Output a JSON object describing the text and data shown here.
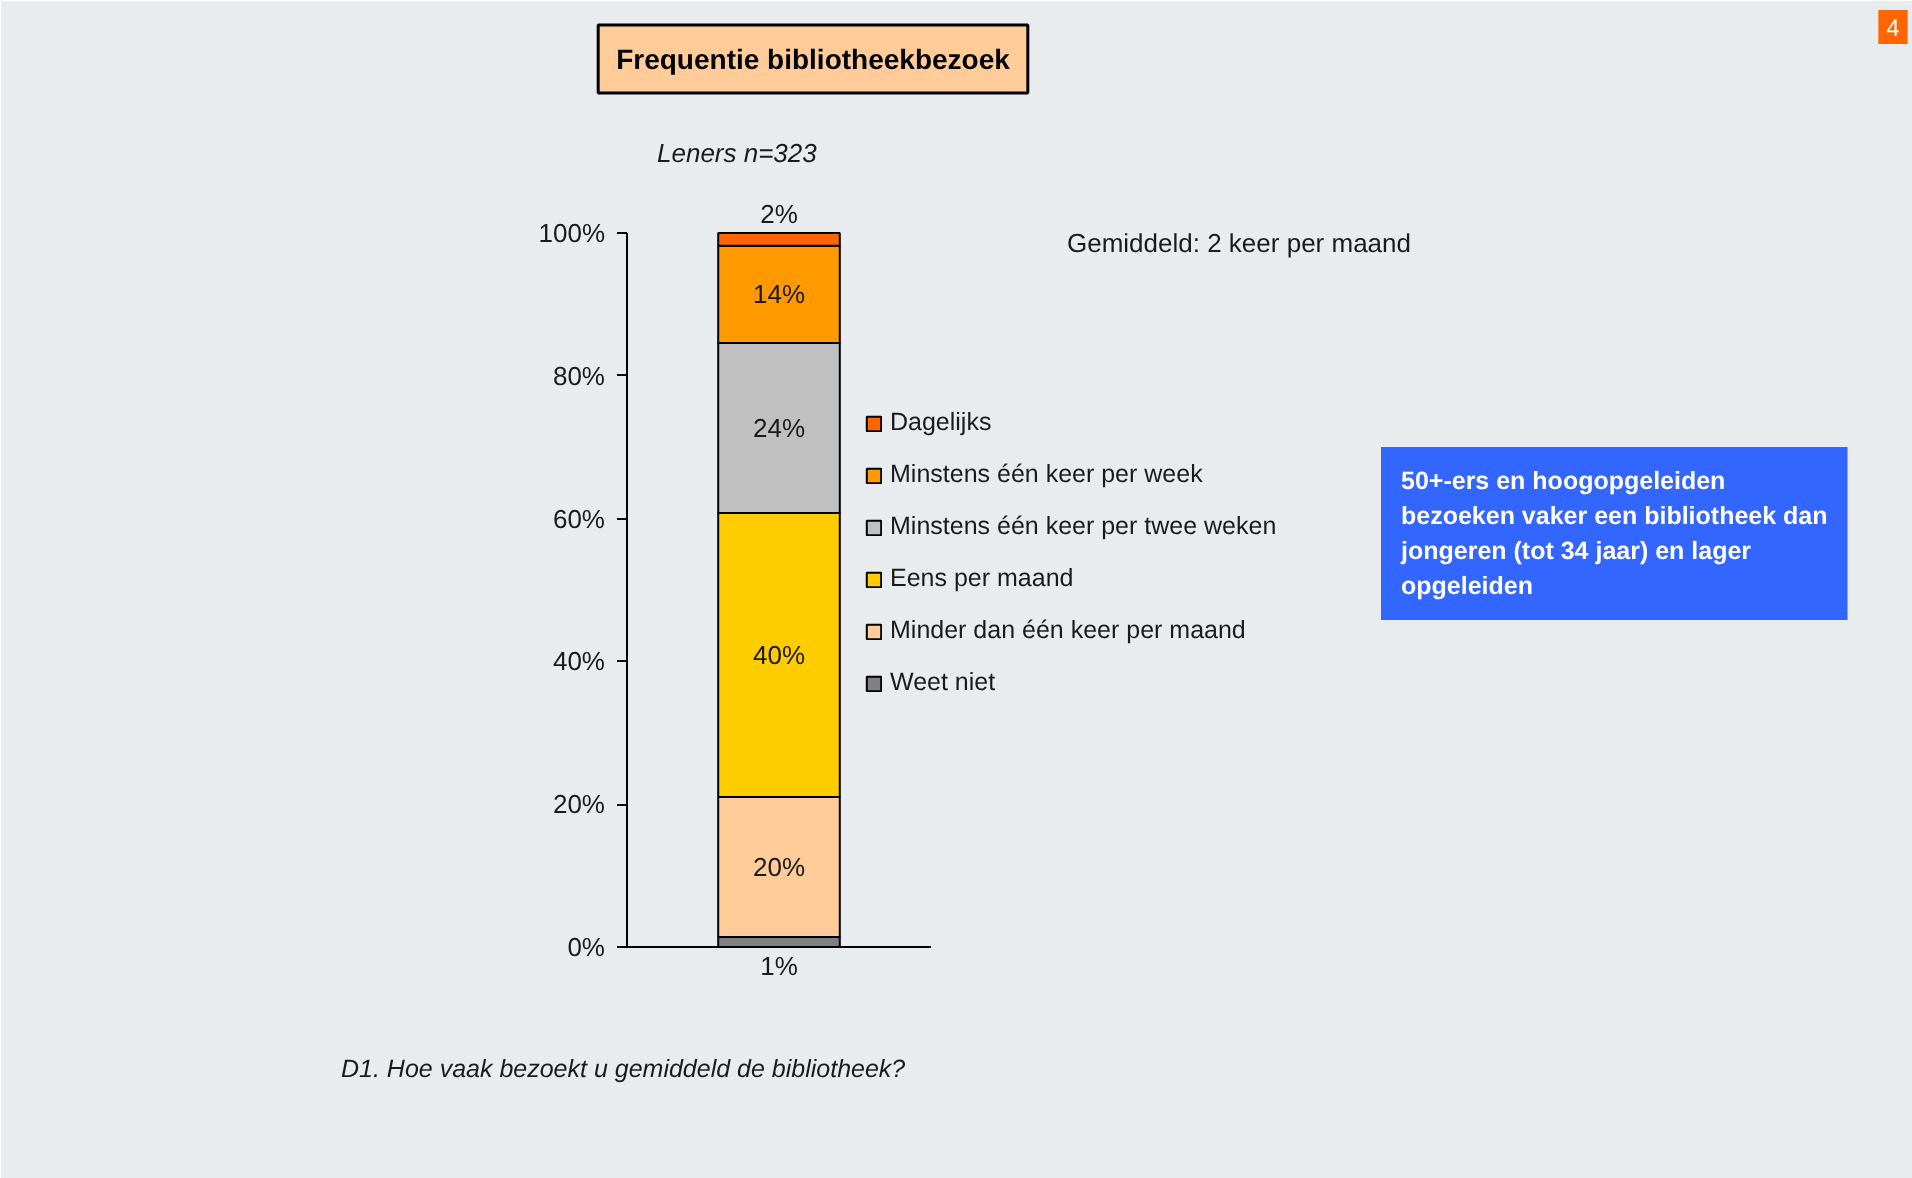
{
  "chart_data": {
    "type": "bar",
    "title": "Frequentie bibliotheekbezoek",
    "subtitle": "Leners n=323",
    "categories": [
      null
    ],
    "stacked": true,
    "series": [
      {
        "name": "Weet niet",
        "color": "#808080",
        "values": [
          1.4
        ],
        "value_labels": [
          "1%"
        ]
      },
      {
        "name": "Minder dan één keer per maand",
        "color": "#ffcc99",
        "values": [
          19.6
        ],
        "value_labels": [
          "20%"
        ]
      },
      {
        "name": "Eens per maand",
        "color": "#ffcc00",
        "values": [
          39.8
        ],
        "value_labels": [
          "40%"
        ]
      },
      {
        "name": "Minstens één keer per twee weken",
        "color": "#c0c0c0",
        "values": [
          23.8
        ],
        "value_labels": [
          "24%"
        ]
      },
      {
        "name": "Minstens één keer per week",
        "color": "#ff9900",
        "values": [
          13.6
        ],
        "value_labels": [
          "14%"
        ]
      },
      {
        "name": "Dagelijks",
        "color": "#ff6600",
        "values": [
          1.8
        ],
        "value_labels": [
          "2%"
        ]
      }
    ],
    "ylim": [
      0,
      100
    ],
    "yticks": [
      {
        "value": 0,
        "label": "0%"
      },
      {
        "value": 20,
        "label": "20%"
      },
      {
        "value": 40,
        "label": "40%"
      },
      {
        "value": 60,
        "label": "60%"
      },
      {
        "value": 80,
        "label": "80%"
      },
      {
        "value": 100,
        "label": "100%"
      }
    ],
    "legend": "right",
    "annotations": [
      "Gemiddeld: 2 keer per maand",
      "50+-ers en hoogopgeleiden\nbezoeken vaker een bibliotheek dan\njongeren (tot 34 jaar) en lager\nopgeleiden",
      "D1. Hoe vaak bezoekt u gemiddeld de bibliotheek?",
      "4"
    ]
  }
}
